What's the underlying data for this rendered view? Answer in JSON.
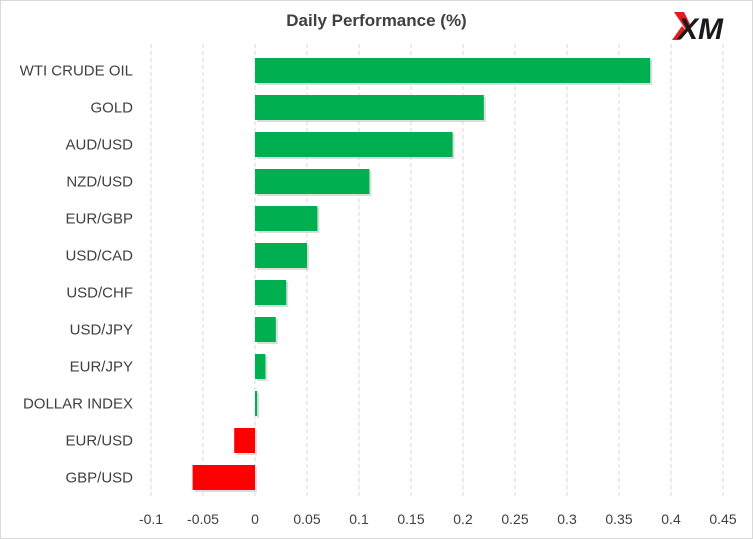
{
  "logo": {
    "text": "XM",
    "colors": {
      "mark": "#e31b23",
      "text": "#1a1a1a"
    }
  },
  "chart_data": {
    "type": "bar",
    "orientation": "horizontal",
    "title": "Daily Performance (%)",
    "xlabel": "",
    "ylabel": "",
    "categories": [
      "WTI CRUDE OIL",
      "GOLD",
      "AUD/USD",
      "NZD/USD",
      "EUR/GBP",
      "USD/CAD",
      "USD/CHF",
      "USD/JPY",
      "EUR/JPY",
      "DOLLAR INDEX",
      "EUR/USD",
      "GBP/USD"
    ],
    "values": [
      0.38,
      0.22,
      0.19,
      0.11,
      0.06,
      0.05,
      0.03,
      0.02,
      0.01,
      0.002,
      -0.02,
      -0.06
    ],
    "xlim": [
      -0.1,
      0.45
    ],
    "xticks": [
      "-0.1",
      "-0.05",
      "0",
      "0.05",
      "0.1",
      "0.15",
      "0.2",
      "0.25",
      "0.3",
      "0.35",
      "0.4",
      "0.45"
    ],
    "xtick_values": [
      -0.1,
      -0.05,
      0,
      0.05,
      0.1,
      0.15,
      0.2,
      0.25,
      0.3,
      0.35,
      0.4,
      0.45
    ],
    "grid": "vertical dashed",
    "legend": "none",
    "colors": {
      "positive": "#00b050",
      "negative": "#ff0000",
      "grid": "#d9d9d9",
      "text": "#404040"
    }
  }
}
